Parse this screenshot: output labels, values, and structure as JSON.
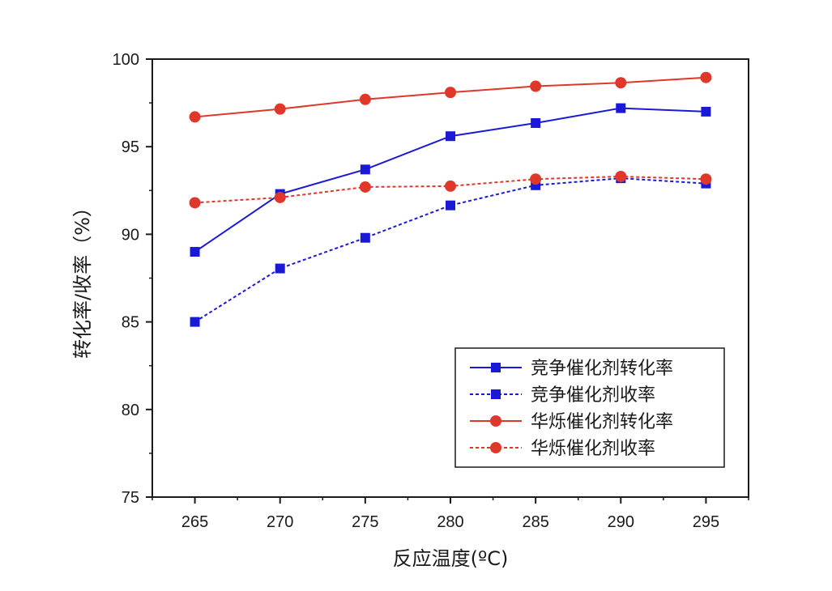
{
  "chart_data": {
    "type": "line",
    "title": "",
    "xlabel": "反应温度(ºC)",
    "ylabel": "转化率/收率（%）",
    "x": [
      265,
      270,
      275,
      280,
      285,
      290,
      295
    ],
    "x_ticks": [
      "265",
      "270",
      "275",
      "280",
      "285",
      "290",
      "295"
    ],
    "xlim": [
      262.5,
      297.5
    ],
    "ylim": [
      75,
      100
    ],
    "y_ticks": [
      "75",
      "80",
      "85",
      "90",
      "95",
      "100"
    ],
    "grid": false,
    "legend_position": "bottom-right",
    "series": [
      {
        "name": "竞争催化剂转化率",
        "values": [
          89.0,
          92.3,
          93.7,
          95.6,
          96.35,
          97.2,
          97.0
        ],
        "color": "#1a1ad6",
        "line": "solid",
        "marker": "square"
      },
      {
        "name": "竞争催化剂收率",
        "values": [
          85.0,
          88.05,
          89.8,
          91.65,
          92.8,
          93.2,
          92.9
        ],
        "color": "#1a1ad6",
        "line": "dashed",
        "marker": "square"
      },
      {
        "name": "华烁催化剂转化率",
        "values": [
          96.7,
          97.15,
          97.7,
          98.1,
          98.45,
          98.65,
          98.95
        ],
        "color": "#e0372b",
        "line": "solid",
        "marker": "circle"
      },
      {
        "name": "华烁催化剂收率",
        "values": [
          91.8,
          92.1,
          92.7,
          92.75,
          93.15,
          93.3,
          93.15
        ],
        "color": "#e0372b",
        "line": "dashed",
        "marker": "circle"
      }
    ]
  }
}
